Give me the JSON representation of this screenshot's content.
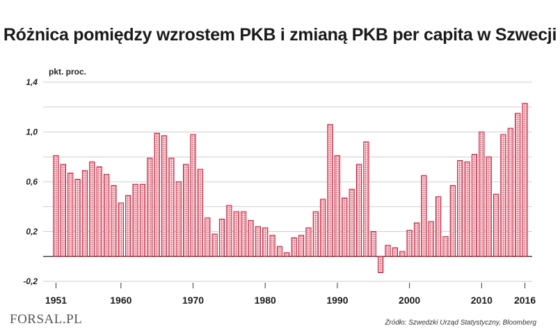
{
  "chart_data": {
    "type": "bar",
    "title": "Różnica pomiędzy wzrostem PKB i zmianą PKB per capita w Szwecji",
    "ylabel": "pkt. proc.",
    "ylim": [
      -0.2,
      1.4
    ],
    "yticks": [
      -0.2,
      0.2,
      0.6,
      1.0,
      1.4
    ],
    "ytick_labels": [
      "-0,2",
      "0,2",
      "0,6",
      "1,0",
      "1,4"
    ],
    "x_tick_labels": [
      "1951",
      "1960",
      "1970",
      "1980",
      "1990",
      "2000",
      "2010",
      "2016"
    ],
    "x_tick_years": [
      1951,
      1960,
      1970,
      1980,
      1990,
      2000,
      2010,
      2016
    ],
    "x_start": 1951,
    "x_end": 2016,
    "grid": true,
    "bar_color": "#c8102e",
    "values": [
      0.81,
      0.74,
      0.67,
      0.62,
      0.69,
      0.76,
      0.72,
      0.66,
      0.57,
      0.43,
      0.49,
      0.58,
      0.58,
      0.79,
      0.99,
      0.97,
      0.79,
      0.6,
      0.74,
      0.98,
      0.7,
      0.31,
      0.18,
      0.3,
      0.41,
      0.36,
      0.36,
      0.29,
      0.24,
      0.23,
      0.17,
      0.08,
      0.03,
      0.15,
      0.17,
      0.23,
      0.36,
      0.46,
      1.06,
      0.81,
      0.47,
      0.54,
      0.74,
      0.92,
      0.2,
      -0.13,
      0.09,
      0.07,
      0.04,
      0.21,
      0.27,
      0.65,
      0.28,
      0.48,
      0.16,
      0.57,
      0.77,
      0.76,
      0.82,
      1.0,
      0.8,
      0.5,
      0.98,
      1.03,
      1.15,
      1.23
    ]
  },
  "footer": {
    "logo_main": "FORSAL",
    "logo_dot": ".",
    "logo_suffix": "PL",
    "source": "Źródło: Szwedzki Urząd Statystyczny, Bloomberg"
  }
}
